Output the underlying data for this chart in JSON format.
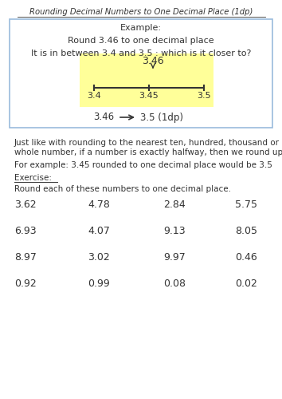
{
  "title": "Rounding Decimal Numbers to One Decimal Place (1dp)",
  "box_text_example": "Example:",
  "box_text_round": "Round 3.46 to one decimal place",
  "box_text_between": "It is in between 3.4 and 3.5 : which is it closer to?",
  "number_line_labels": [
    "3.4",
    "3.45",
    "3.5"
  ],
  "number_line_highlight": "3.46",
  "yellow_color": "#ffff99",
  "box_border_color": "#99bbdd",
  "info_text1a": "Just like with rounding to the nearest ten, hundred, thousand or",
  "info_text1b": "whole number, if a number is exactly halfway, then we round up.",
  "info_text2": "For example: 3.45 rounded to one decimal place would be 3.5",
  "exercise_label": "Exercise:",
  "exercise_instruction": "Round each of these numbers to one decimal place.",
  "exercise_numbers": [
    [
      "3.62",
      "4.78",
      "2.84",
      "5.75"
    ],
    [
      "6.93",
      "4.07",
      "9.13",
      "8.05"
    ],
    [
      "8.97",
      "3.02",
      "9.97",
      "0.46"
    ],
    [
      "0.92",
      "0.99",
      "0.08",
      "0.02"
    ]
  ],
  "font_color": "#333333",
  "background_color": "#ffffff",
  "font_size_title": 7.2,
  "font_size_box": 8.0,
  "font_size_body": 7.5,
  "font_size_exercise": 9.0
}
